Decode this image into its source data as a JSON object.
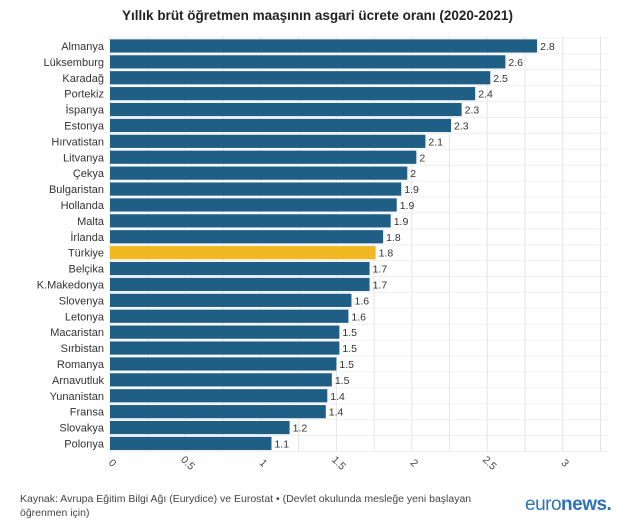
{
  "chart_data": {
    "type": "bar",
    "orientation": "horizontal",
    "title": "Yıllık brüt öğretmen maaşının asgari ücrete oranı (2020-2021)",
    "categories": [
      "Almanya",
      "Lüksemburg",
      "Karadağ",
      "Portekiz",
      "İspanya",
      "Estonya",
      "Hırvatistan",
      "Litvanya",
      "Çekya",
      "Bulgaristan",
      "Hollanda",
      "Malta",
      "İrlanda",
      "Türkiye",
      "Belçika",
      "K.Makedonya",
      "Slovenya",
      "Letonya",
      "Macaristan",
      "Sırbistan",
      "Romanya",
      "Arnavutluk",
      "Yunanistan",
      "Fransa",
      "Slovakya",
      "Polonya"
    ],
    "values": [
      2.83,
      2.62,
      2.52,
      2.42,
      2.33,
      2.26,
      2.09,
      2.03,
      1.97,
      1.93,
      1.9,
      1.86,
      1.81,
      1.76,
      1.72,
      1.72,
      1.6,
      1.58,
      1.52,
      1.52,
      1.5,
      1.47,
      1.44,
      1.43,
      1.19,
      1.07
    ],
    "value_labels": [
      "2.8",
      "2.6",
      "2.5",
      "2.4",
      "2.3",
      "2.3",
      "2.1",
      "2",
      "2",
      "1.9",
      "1.9",
      "1.9",
      "1.8",
      "1.8",
      "1.7",
      "1.7",
      "1.6",
      "1.6",
      "1.5",
      "1.5",
      "1.5",
      "1.5",
      "1.4",
      "1.4",
      "1.2",
      "1.1"
    ],
    "xlim": [
      0,
      3.3
    ],
    "xticks": [
      "0",
      "0.5",
      "1",
      "1.5",
      "2",
      "2.5",
      "3"
    ],
    "highlight": "Türkiye",
    "colors": {
      "bar": "#1f5f86",
      "highlight": "#f2b824",
      "grid": "#e3e3e3"
    },
    "grid": true
  },
  "footer": {
    "source": "Kaynak: Avrupa Eğitim Bilgi Ağı (Eurydice) ve Eurostat • (Devlet okulunda mesleğe yeni başlayan öğrenmen için)",
    "logo_part1": "euro",
    "logo_part2": "news."
  }
}
